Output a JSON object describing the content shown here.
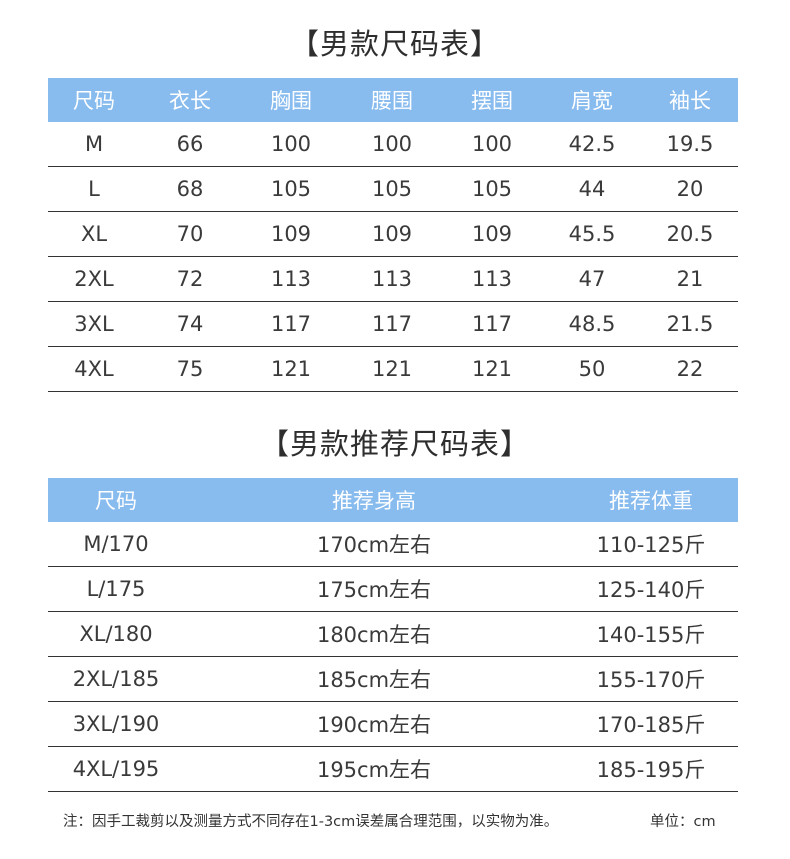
{
  "men_size_chart": {
    "title": "【男款尺码表】",
    "headers": [
      "尺码",
      "衣长",
      "胸围",
      "腰围",
      "摆围",
      "肩宽",
      "袖长"
    ],
    "rows": [
      [
        "M",
        "66",
        "100",
        "100",
        "100",
        "42.5",
        "19.5"
      ],
      [
        "L",
        "68",
        "105",
        "105",
        "105",
        "44",
        "20"
      ],
      [
        "XL",
        "70",
        "109",
        "109",
        "109",
        "45.5",
        "20.5"
      ],
      [
        "2XL",
        "72",
        "113",
        "113",
        "113",
        "47",
        "21"
      ],
      [
        "3XL",
        "74",
        "117",
        "117",
        "117",
        "48.5",
        "21.5"
      ],
      [
        "4XL",
        "75",
        "121",
        "121",
        "121",
        "50",
        "22"
      ]
    ]
  },
  "men_recommend_chart": {
    "title": "【男款推荐尺码表】",
    "headers": [
      "尺码",
      "推荐身高",
      "推荐体重"
    ],
    "rows": [
      [
        "M/170",
        "170cm左右",
        "110-125斤"
      ],
      [
        "L/175",
        "175cm左右",
        "125-140斤"
      ],
      [
        "XL/180",
        "180cm左右",
        "140-155斤"
      ],
      [
        "2XL/185",
        "185cm左右",
        "155-170斤"
      ],
      [
        "3XL/190",
        "190cm左右",
        "170-185斤"
      ],
      [
        "4XL/195",
        "195cm左右",
        "185-195斤"
      ]
    ]
  },
  "footer": {
    "note": "注：因手工裁剪以及测量方式不同存在1-3cm误差属合理范围，以实物为准。",
    "unit": "单位：cm"
  },
  "colors": {
    "header_bg": "#88bbee",
    "header_text": "#ffffff",
    "row_divider": "#333333"
  }
}
